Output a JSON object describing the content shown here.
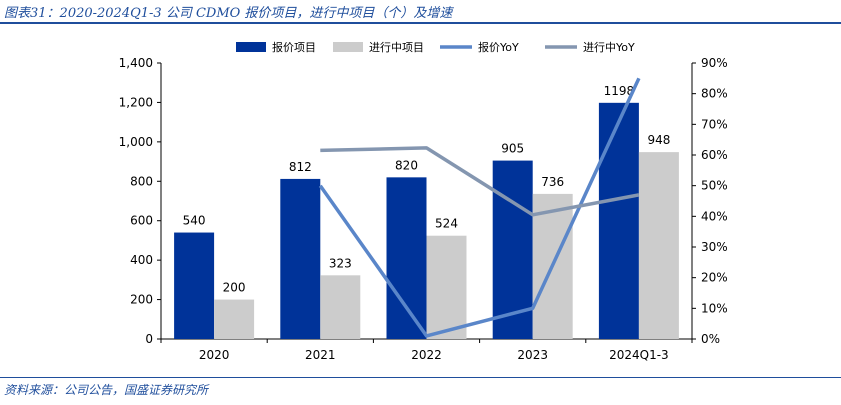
{
  "title": "图表31：2020-2024Q1-3 公司 CDMO 报价项目，进行中项目（个）及增速",
  "source": "资料来源：公司公告，国盛证券研究所",
  "chart_data": {
    "type": "bar",
    "categories": [
      "2020",
      "2021",
      "2022",
      "2023",
      "2024Q1-3"
    ],
    "series": [
      {
        "name": "报价项目",
        "kind": "bar",
        "axis": "left",
        "color": "#003399",
        "values": [
          540,
          812,
          820,
          905,
          1198
        ]
      },
      {
        "name": "进行中项目",
        "kind": "bar",
        "axis": "left",
        "color": "#cccccc",
        "values": [
          200,
          323,
          524,
          736,
          948
        ]
      },
      {
        "name": "报价YoY",
        "kind": "line",
        "axis": "right",
        "color": "#5a86c9",
        "values": [
          null,
          0.5,
          0.01,
          0.1,
          0.85
        ]
      },
      {
        "name": "进行中YoY",
        "kind": "line",
        "axis": "right",
        "color": "#8496b0",
        "values": [
          null,
          0.615,
          0.623,
          0.405,
          0.47
        ]
      }
    ],
    "ylim_left": [
      0,
      1400
    ],
    "yticks_left": [
      "0",
      "200",
      "400",
      "600",
      "800",
      "1,000",
      "1,200",
      "1,400"
    ],
    "ylim_right": [
      0,
      0.9
    ],
    "yticks_right": [
      "0%",
      "10%",
      "20%",
      "30%",
      "40%",
      "50%",
      "60%",
      "70%",
      "80%",
      "90%"
    ],
    "data_labels_bar1": [
      "540",
      "812",
      "820",
      "905",
      "1198"
    ],
    "data_labels_bar2": [
      "200",
      "323",
      "524",
      "736",
      "948"
    ],
    "legend": [
      "报价项目",
      "进行中项目",
      "报价YoY",
      "进行中YoY"
    ],
    "legend_position": "top"
  }
}
